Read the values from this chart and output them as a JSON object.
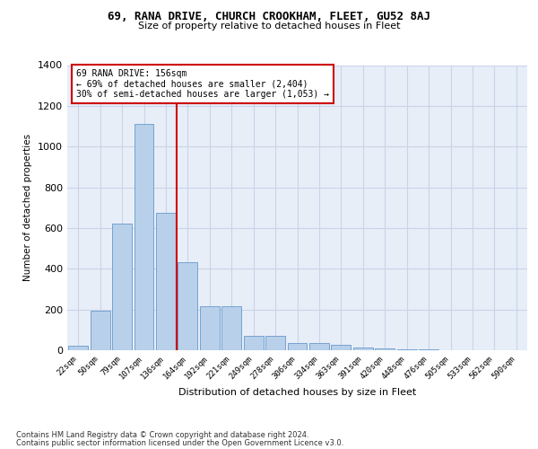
{
  "title1": "69, RANA DRIVE, CHURCH CROOKHAM, FLEET, GU52 8AJ",
  "title2": "Size of property relative to detached houses in Fleet",
  "xlabel": "Distribution of detached houses by size in Fleet",
  "ylabel": "Number of detached properties",
  "footer1": "Contains HM Land Registry data © Crown copyright and database right 2024.",
  "footer2": "Contains public sector information licensed under the Open Government Licence v3.0.",
  "annotation_line1": "69 RANA DRIVE: 156sqm",
  "annotation_line2": "← 69% of detached houses are smaller (2,404)",
  "annotation_line3": "30% of semi-detached houses are larger (1,053) →",
  "bar_categories": [
    "22sqm",
    "50sqm",
    "79sqm",
    "107sqm",
    "136sqm",
    "164sqm",
    "192sqm",
    "221sqm",
    "249sqm",
    "278sqm",
    "306sqm",
    "334sqm",
    "363sqm",
    "391sqm",
    "420sqm",
    "448sqm",
    "476sqm",
    "505sqm",
    "533sqm",
    "562sqm",
    "590sqm"
  ],
  "bar_values": [
    20,
    195,
    620,
    1110,
    675,
    430,
    215,
    215,
    70,
    70,
    35,
    35,
    25,
    15,
    10,
    5,
    3,
    2,
    1,
    0,
    0
  ],
  "bar_color": "#b8d0ea",
  "bar_edge_color": "#6699cc",
  "vline_color": "#cc0000",
  "ylim": [
    0,
    1400
  ],
  "yticks": [
    0,
    200,
    400,
    600,
    800,
    1000,
    1200,
    1400
  ],
  "annotation_box_color": "#cc0000",
  "grid_color": "#c8d4e8",
  "bg_color": "#e8eef8",
  "fig_bg_color": "#ffffff"
}
